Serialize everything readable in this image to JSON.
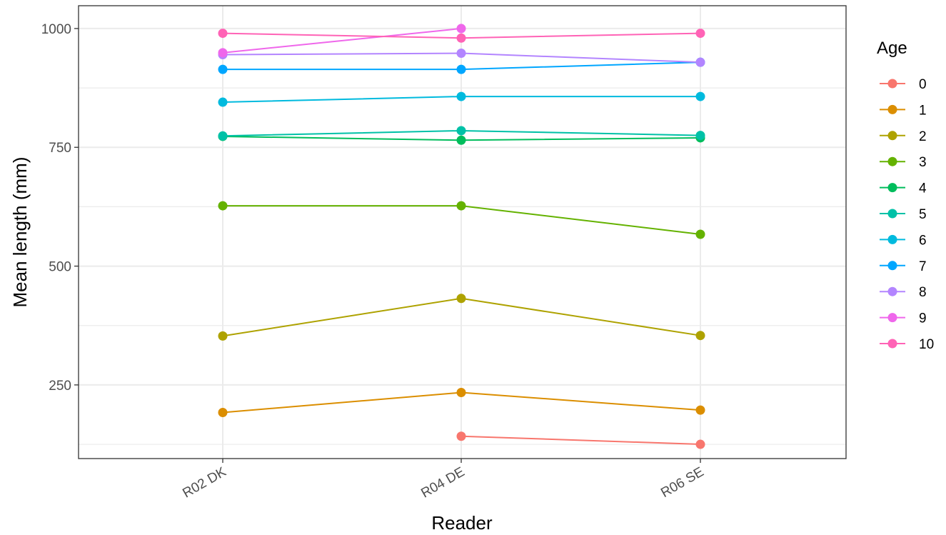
{
  "chart_data": {
    "type": "line",
    "xlabel": "Reader",
    "ylabel": "Mean length (mm)",
    "categories": [
      "R02 DK",
      "R04 DE",
      "R06 SE"
    ],
    "y_ticks": [
      250,
      500,
      750,
      1000
    ],
    "y_tick_labels": [
      "250",
      "500",
      "750",
      "1000"
    ],
    "ylim": [
      95,
      1048
    ],
    "grid": true,
    "legend": {
      "title": "Age",
      "position": "right",
      "entries": [
        "0",
        "1",
        "2",
        "3",
        "4",
        "5",
        "6",
        "7",
        "8",
        "9",
        "10"
      ]
    },
    "series": [
      {
        "name": "0",
        "color": "#F8766D",
        "values": [
          null,
          142,
          125
        ]
      },
      {
        "name": "1",
        "color": "#DB8E00",
        "values": [
          192,
          234,
          197
        ]
      },
      {
        "name": "2",
        "color": "#AEA200",
        "values": [
          353,
          432,
          354
        ]
      },
      {
        "name": "3",
        "color": "#64B200",
        "values": [
          627,
          627,
          567
        ]
      },
      {
        "name": "4",
        "color": "#00BD5C",
        "values": [
          773,
          765,
          770
        ]
      },
      {
        "name": "5",
        "color": "#00C1A7",
        "values": [
          774,
          785,
          775
        ]
      },
      {
        "name": "6",
        "color": "#00BADE",
        "values": [
          845,
          857,
          857
        ]
      },
      {
        "name": "7",
        "color": "#00A6FF",
        "values": [
          914,
          914,
          929
        ]
      },
      {
        "name": "8",
        "color": "#B385FF",
        "values": [
          945,
          948,
          929
        ]
      },
      {
        "name": "9",
        "color": "#EF67EB",
        "values": [
          949,
          1000,
          null
        ]
      },
      {
        "name": "10",
        "color": "#FF63B6",
        "values": [
          990,
          980,
          990
        ]
      }
    ]
  }
}
